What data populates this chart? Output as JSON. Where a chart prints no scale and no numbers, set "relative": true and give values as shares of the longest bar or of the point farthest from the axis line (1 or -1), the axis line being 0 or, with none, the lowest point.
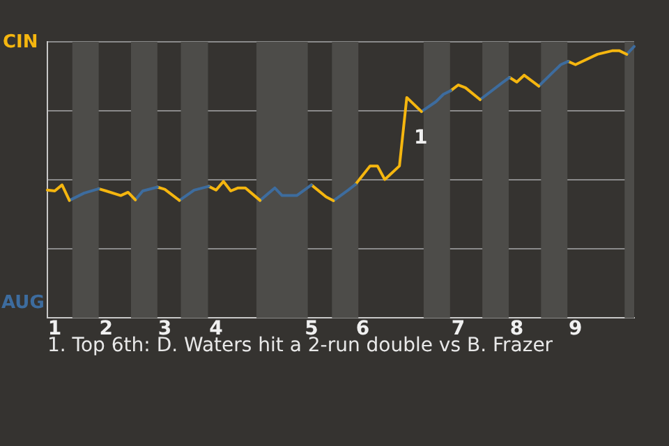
{
  "chart_data": {
    "type": "line",
    "relative": true,
    "grid": "y",
    "legend": false,
    "marker": "none",
    "line_style": "solid",
    "categories": [
      null,
      "1",
      null,
      null,
      null,
      null,
      null,
      null,
      "2",
      null,
      null,
      null,
      null,
      null,
      null,
      null,
      "3",
      null,
      null,
      null,
      null,
      null,
      null,
      "4",
      null,
      null,
      null,
      null,
      null,
      null,
      null,
      null,
      null,
      null,
      null,
      null,
      "5",
      null,
      null,
      null,
      null,
      null,
      null,
      "6",
      null,
      null,
      null,
      null,
      null,
      null,
      null,
      null,
      null,
      null,
      null,
      null,
      "7",
      null,
      null,
      null,
      null,
      null,
      null,
      null,
      "8",
      null,
      null,
      null,
      null,
      null,
      null,
      null,
      "9",
      null,
      null,
      null,
      null,
      null,
      null,
      null,
      null
    ],
    "series": [
      {
        "color": "#f5b60f",
        "values": [
          0.471,
          0.468,
          0.49,
          0.433,
          null,
          null,
          null,
          null,
          null,
          null,
          null,
          null,
          null,
          null,
          null,
          null,
          null,
          null,
          null,
          null,
          null,
          null,
          null,
          null,
          null,
          null,
          null,
          null,
          null,
          null,
          null,
          null,
          null,
          null,
          null,
          null,
          null,
          null,
          null,
          null,
          null,
          null,
          null,
          null,
          null,
          null,
          null,
          null,
          null,
          null,
          null,
          null,
          null,
          null,
          null,
          null,
          null,
          null,
          null,
          null,
          null,
          null,
          null,
          null,
          null,
          null,
          null,
          null,
          null,
          null,
          null,
          null,
          null,
          null,
          null,
          null,
          null,
          null,
          null,
          null,
          null
        ]
      },
      {
        "color": "#3d6c9e",
        "values": [
          null,
          null,
          null,
          0.433,
          null,
          0.46,
          null,
          0.476,
          null,
          null,
          null,
          null,
          null,
          null,
          null,
          null,
          null,
          null,
          null,
          null,
          null,
          null,
          null,
          null,
          null,
          null,
          null,
          null,
          null,
          null,
          null,
          null,
          null,
          null,
          null,
          null,
          null,
          null,
          null,
          null,
          null,
          null,
          null,
          null,
          null,
          null,
          null,
          null,
          null,
          null,
          null,
          null,
          null,
          null,
          null,
          null,
          null,
          null,
          null,
          null,
          null,
          null,
          null,
          null,
          null,
          null,
          null,
          null,
          null,
          null,
          null,
          null,
          null,
          null,
          null,
          null,
          null,
          null,
          null,
          null,
          null
        ]
      },
      {
        "color": "#f5b60f",
        "values": [
          null,
          null,
          null,
          null,
          null,
          null,
          null,
          0.476,
          0.468,
          null,
          0.451,
          0.463,
          0.435,
          null,
          null,
          null,
          null,
          null,
          null,
          null,
          null,
          null,
          null,
          null,
          null,
          null,
          null,
          null,
          null,
          null,
          null,
          null,
          null,
          null,
          null,
          null,
          null,
          null,
          null,
          null,
          null,
          null,
          null,
          null,
          null,
          null,
          null,
          null,
          null,
          null,
          null,
          null,
          null,
          null,
          null,
          null,
          null,
          null,
          null,
          null,
          null,
          null,
          null,
          null,
          null,
          null,
          null,
          null,
          null,
          null,
          null,
          null,
          null,
          null,
          null,
          null,
          null,
          null,
          null,
          null,
          null
        ]
      },
      {
        "color": "#3d6c9e",
        "values": [
          null,
          null,
          null,
          null,
          null,
          null,
          null,
          null,
          null,
          null,
          null,
          null,
          0.435,
          0.468,
          null,
          0.482,
          null,
          null,
          null,
          null,
          null,
          null,
          null,
          null,
          null,
          null,
          null,
          null,
          null,
          null,
          null,
          null,
          null,
          null,
          null,
          null,
          null,
          null,
          null,
          null,
          null,
          null,
          null,
          null,
          null,
          null,
          null,
          null,
          null,
          null,
          null,
          null,
          null,
          null,
          null,
          null,
          null,
          null,
          null,
          null,
          null,
          null,
          null,
          null,
          null,
          null,
          null,
          null,
          null,
          null,
          null,
          null,
          null,
          null,
          null,
          null,
          null,
          null,
          null,
          null,
          null
        ]
      },
      {
        "color": "#f5b60f",
        "values": [
          null,
          null,
          null,
          null,
          null,
          null,
          null,
          null,
          null,
          null,
          null,
          null,
          null,
          null,
          null,
          0.482,
          0.474,
          null,
          0.433,
          null,
          null,
          null,
          null,
          null,
          null,
          null,
          null,
          null,
          null,
          null,
          null,
          null,
          null,
          null,
          null,
          null,
          null,
          null,
          null,
          null,
          null,
          null,
          null,
          null,
          null,
          null,
          null,
          null,
          null,
          null,
          null,
          null,
          null,
          null,
          null,
          null,
          null,
          null,
          null,
          null,
          null,
          null,
          null,
          null,
          null,
          null,
          null,
          null,
          null,
          null,
          null,
          null,
          null,
          null,
          null,
          null,
          null,
          null,
          null,
          null,
          null
        ]
      },
      {
        "color": "#3d6c9e",
        "values": [
          null,
          null,
          null,
          null,
          null,
          null,
          null,
          null,
          null,
          null,
          null,
          null,
          null,
          null,
          null,
          null,
          null,
          null,
          0.433,
          null,
          0.471,
          null,
          0.485,
          null,
          null,
          null,
          null,
          null,
          null,
          null,
          null,
          null,
          null,
          null,
          null,
          null,
          null,
          null,
          null,
          null,
          null,
          null,
          null,
          null,
          null,
          null,
          null,
          null,
          null,
          null,
          null,
          null,
          null,
          null,
          null,
          null,
          null,
          null,
          null,
          null,
          null,
          null,
          null,
          null,
          null,
          null,
          null,
          null,
          null,
          null,
          null,
          null,
          null,
          null,
          null,
          null,
          null,
          null,
          null,
          null,
          null
        ]
      },
      {
        "color": "#f5b60f",
        "values": [
          null,
          null,
          null,
          null,
          null,
          null,
          null,
          null,
          null,
          null,
          null,
          null,
          null,
          null,
          null,
          null,
          null,
          null,
          null,
          null,
          null,
          null,
          0.485,
          0.471,
          0.503,
          0.468,
          0.479,
          0.479,
          null,
          0.433,
          null,
          null,
          null,
          null,
          null,
          null,
          null,
          null,
          null,
          null,
          null,
          null,
          null,
          null,
          null,
          null,
          null,
          null,
          null,
          null,
          null,
          null,
          null,
          null,
          null,
          null,
          null,
          null,
          null,
          null,
          null,
          null,
          null,
          null,
          null,
          null,
          null,
          null,
          null,
          null,
          null,
          null,
          null,
          null,
          null,
          null,
          null,
          null,
          null,
          null,
          null
        ]
      },
      {
        "color": "#3d6c9e",
        "values": [
          null,
          null,
          null,
          null,
          null,
          null,
          null,
          null,
          null,
          null,
          null,
          null,
          null,
          null,
          null,
          null,
          null,
          null,
          null,
          null,
          null,
          null,
          null,
          null,
          null,
          null,
          null,
          null,
          null,
          0.433,
          null,
          0.479,
          0.451,
          null,
          0.451,
          null,
          0.49,
          null,
          null,
          null,
          null,
          null,
          null,
          null,
          null,
          null,
          null,
          null,
          null,
          null,
          null,
          null,
          null,
          null,
          null,
          null,
          null,
          null,
          null,
          null,
          null,
          null,
          null,
          null,
          null,
          null,
          null,
          null,
          null,
          null,
          null,
          null,
          null,
          null,
          null,
          null,
          null,
          null,
          null,
          null,
          null
        ]
      },
      {
        "color": "#f5b60f",
        "values": [
          null,
          null,
          null,
          null,
          null,
          null,
          null,
          null,
          null,
          null,
          null,
          null,
          null,
          null,
          null,
          null,
          null,
          null,
          null,
          null,
          null,
          null,
          null,
          null,
          null,
          null,
          null,
          null,
          null,
          null,
          null,
          null,
          null,
          null,
          null,
          null,
          0.49,
          null,
          0.446,
          0.432,
          null,
          null,
          null,
          null,
          null,
          null,
          null,
          null,
          null,
          null,
          null,
          null,
          null,
          null,
          null,
          null,
          null,
          null,
          null,
          null,
          null,
          null,
          null,
          null,
          null,
          null,
          null,
          null,
          null,
          null,
          null,
          null,
          null,
          null,
          null,
          null,
          null,
          null,
          null,
          null,
          null
        ]
      },
      {
        "color": "#3d6c9e",
        "values": [
          null,
          null,
          null,
          null,
          null,
          null,
          null,
          null,
          null,
          null,
          null,
          null,
          null,
          null,
          null,
          null,
          null,
          null,
          null,
          null,
          null,
          null,
          null,
          null,
          null,
          null,
          null,
          null,
          null,
          null,
          null,
          null,
          null,
          null,
          null,
          null,
          null,
          null,
          null,
          0.432,
          null,
          0.471,
          0.492,
          null,
          null,
          null,
          null,
          null,
          null,
          null,
          null,
          null,
          null,
          null,
          null,
          null,
          null,
          null,
          null,
          null,
          null,
          null,
          null,
          null,
          null,
          null,
          null,
          null,
          null,
          null,
          null,
          null,
          null,
          null,
          null,
          null,
          null,
          null,
          null,
          null,
          null
        ]
      },
      {
        "color": "#f5b60f",
        "values": [
          null,
          null,
          null,
          null,
          null,
          null,
          null,
          null,
          null,
          null,
          null,
          null,
          null,
          null,
          null,
          null,
          null,
          null,
          null,
          null,
          null,
          null,
          null,
          null,
          null,
          null,
          null,
          null,
          null,
          null,
          null,
          null,
          null,
          null,
          null,
          null,
          null,
          null,
          null,
          null,
          null,
          null,
          0.492,
          null,
          0.56,
          0.56,
          0.51,
          null,
          0.56,
          0.812,
          null,
          0.76,
          null,
          null,
          null,
          null,
          null,
          null,
          null,
          null,
          null,
          null,
          null,
          null,
          null,
          null,
          null,
          null,
          null,
          null,
          null,
          null,
          null,
          null,
          null,
          null,
          null,
          null,
          null,
          null,
          null
        ]
      },
      {
        "color": "#3d6c9e",
        "values": [
          null,
          null,
          null,
          null,
          null,
          null,
          null,
          null,
          null,
          null,
          null,
          null,
          null,
          null,
          null,
          null,
          null,
          null,
          null,
          null,
          null,
          null,
          null,
          null,
          null,
          null,
          null,
          null,
          null,
          null,
          null,
          null,
          null,
          null,
          null,
          null,
          null,
          null,
          null,
          null,
          null,
          null,
          null,
          null,
          null,
          null,
          null,
          null,
          null,
          null,
          null,
          0.76,
          null,
          0.797,
          0.824,
          0.837,
          null,
          null,
          null,
          null,
          null,
          null,
          null,
          null,
          null,
          null,
          null,
          null,
          null,
          null,
          null,
          null,
          null,
          null,
          null,
          null,
          null,
          null,
          null,
          null,
          null
        ]
      },
      {
        "color": "#f5b60f",
        "values": [
          null,
          null,
          null,
          null,
          null,
          null,
          null,
          null,
          null,
          null,
          null,
          null,
          null,
          null,
          null,
          null,
          null,
          null,
          null,
          null,
          null,
          null,
          null,
          null,
          null,
          null,
          null,
          null,
          null,
          null,
          null,
          null,
          null,
          null,
          null,
          null,
          null,
          null,
          null,
          null,
          null,
          null,
          null,
          null,
          null,
          null,
          null,
          null,
          null,
          null,
          null,
          null,
          null,
          null,
          null,
          0.837,
          0.858,
          0.848,
          null,
          0.804,
          null,
          null,
          null,
          null,
          null,
          null,
          null,
          null,
          null,
          null,
          null,
          null,
          null,
          null,
          null,
          null,
          null,
          null,
          null,
          null,
          null
        ]
      },
      {
        "color": "#3d6c9e",
        "values": [
          null,
          null,
          null,
          null,
          null,
          null,
          null,
          null,
          null,
          null,
          null,
          null,
          null,
          null,
          null,
          null,
          null,
          null,
          null,
          null,
          null,
          null,
          null,
          null,
          null,
          null,
          null,
          null,
          null,
          null,
          null,
          null,
          null,
          null,
          null,
          null,
          null,
          null,
          null,
          null,
          null,
          null,
          null,
          null,
          null,
          null,
          null,
          null,
          null,
          null,
          null,
          null,
          null,
          null,
          null,
          null,
          null,
          null,
          null,
          0.804,
          null,
          null,
          0.866,
          0.886,
          null,
          null,
          null,
          null,
          null,
          null,
          null,
          null,
          null,
          null,
          null,
          null,
          null,
          null,
          null,
          null,
          null
        ]
      },
      {
        "color": "#f5b60f",
        "values": [
          null,
          null,
          null,
          null,
          null,
          null,
          null,
          null,
          null,
          null,
          null,
          null,
          null,
          null,
          null,
          null,
          null,
          null,
          null,
          null,
          null,
          null,
          null,
          null,
          null,
          null,
          null,
          null,
          null,
          null,
          null,
          null,
          null,
          null,
          null,
          null,
          null,
          null,
          null,
          null,
          null,
          null,
          null,
          null,
          null,
          null,
          null,
          null,
          null,
          null,
          null,
          null,
          null,
          null,
          null,
          null,
          null,
          null,
          null,
          null,
          null,
          null,
          null,
          0.886,
          0.869,
          0.894,
          null,
          0.854,
          null,
          null,
          null,
          null,
          null,
          null,
          null,
          null,
          null,
          null,
          null,
          null,
          null
        ]
      },
      {
        "color": "#3d6c9e",
        "values": [
          null,
          null,
          null,
          null,
          null,
          null,
          null,
          null,
          null,
          null,
          null,
          null,
          null,
          null,
          null,
          null,
          null,
          null,
          null,
          null,
          null,
          null,
          null,
          null,
          null,
          null,
          null,
          null,
          null,
          null,
          null,
          null,
          null,
          null,
          null,
          null,
          null,
          null,
          null,
          null,
          null,
          null,
          null,
          null,
          null,
          null,
          null,
          null,
          null,
          null,
          null,
          null,
          null,
          null,
          null,
          null,
          null,
          null,
          null,
          null,
          null,
          null,
          null,
          null,
          null,
          null,
          null,
          0.854,
          null,
          0.907,
          0.933,
          0.945,
          null,
          null,
          null,
          null,
          null,
          null,
          null,
          null,
          null
        ]
      },
      {
        "color": "#f5b60f",
        "values": [
          null,
          null,
          null,
          null,
          null,
          null,
          null,
          null,
          null,
          null,
          null,
          null,
          null,
          null,
          null,
          null,
          null,
          null,
          null,
          null,
          null,
          null,
          null,
          null,
          null,
          null,
          null,
          null,
          null,
          null,
          null,
          null,
          null,
          null,
          null,
          null,
          null,
          null,
          null,
          null,
          null,
          null,
          null,
          null,
          null,
          null,
          null,
          null,
          null,
          null,
          null,
          null,
          null,
          null,
          null,
          null,
          null,
          null,
          null,
          null,
          null,
          null,
          null,
          null,
          null,
          null,
          null,
          null,
          null,
          null,
          null,
          0.945,
          0.933,
          null,
          null,
          0.971,
          null,
          0.984,
          0.984,
          0.971,
          null
        ]
      },
      {
        "color": "#3d6c9e",
        "values": [
          null,
          null,
          null,
          null,
          null,
          null,
          null,
          null,
          null,
          null,
          null,
          null,
          null,
          null,
          null,
          null,
          null,
          null,
          null,
          null,
          null,
          null,
          null,
          null,
          null,
          null,
          null,
          null,
          null,
          null,
          null,
          null,
          null,
          null,
          null,
          null,
          null,
          null,
          null,
          null,
          null,
          null,
          null,
          null,
          null,
          null,
          null,
          null,
          null,
          null,
          null,
          null,
          null,
          null,
          null,
          null,
          null,
          null,
          null,
          null,
          null,
          null,
          null,
          null,
          null,
          null,
          null,
          null,
          null,
          null,
          null,
          null,
          null,
          null,
          null,
          null,
          null,
          null,
          null,
          0.971,
          1
        ]
      }
    ],
    "annotations": [
      "1",
      "1. Top 6th: D. Waters hit a 2-run double vs B. Frazer",
      "CIN",
      "AUG"
    ]
  }
}
